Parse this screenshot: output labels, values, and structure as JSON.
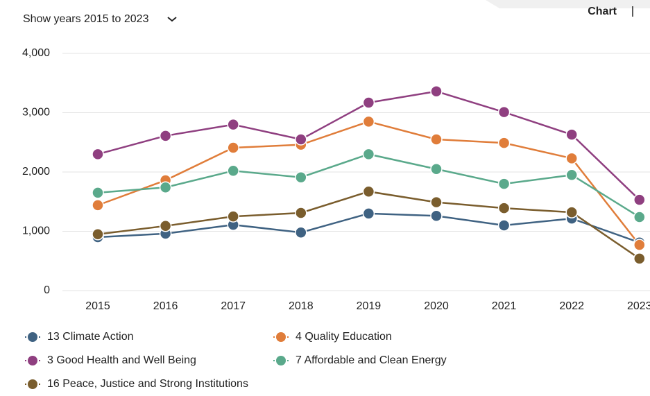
{
  "header": {
    "year_filter": "Show years 2015 to 2023",
    "view_label": "Chart"
  },
  "chart_data": {
    "type": "line",
    "x": [
      "2015",
      "2016",
      "2017",
      "2018",
      "2019",
      "2020",
      "2021",
      "2022",
      "2023"
    ],
    "ylim": [
      0,
      4000
    ],
    "yticks": [
      0,
      {
        "value": 1000,
        "label": "1,000"
      },
      {
        "value": 2000,
        "label": "2,000"
      },
      {
        "value": 3000,
        "label": "3,000"
      },
      {
        "value": 4000,
        "label": "4,000"
      }
    ],
    "grid": true,
    "series": [
      {
        "name": "13 Climate Action",
        "color": "#3f6282",
        "values": [
          900,
          960,
          1110,
          980,
          1300,
          1260,
          1100,
          1215,
          810
        ]
      },
      {
        "name": "4 Quality Education",
        "color": "#e07d3a",
        "values": [
          1440,
          1860,
          2410,
          2460,
          2850,
          2550,
          2490,
          2230,
          770
        ]
      },
      {
        "name": "3 Good Health and Well Being",
        "color": "#8f3f80",
        "values": [
          2300,
          2610,
          2800,
          2550,
          3170,
          3360,
          3010,
          2630,
          1530
        ]
      },
      {
        "name": "7 Affordable and Clean Energy",
        "color": "#5aa98b",
        "values": [
          1650,
          1740,
          2020,
          1910,
          2300,
          2050,
          1800,
          1950,
          1240
        ]
      },
      {
        "name": "16 Peace, Justice and Strong Institutions",
        "color": "#7a5d2d",
        "values": [
          950,
          1090,
          1250,
          1310,
          1670,
          1490,
          1390,
          1320,
          540
        ]
      }
    ]
  }
}
